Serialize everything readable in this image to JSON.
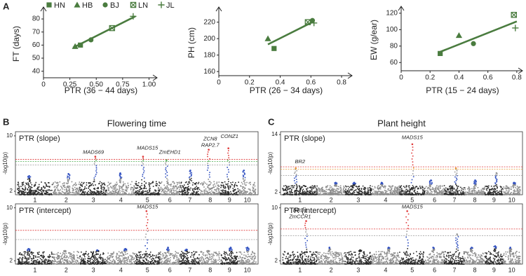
{
  "panel_labels": [
    "A",
    "B",
    "C"
  ],
  "chart_data": [
    {
      "type": "scatter",
      "x_label": "PTR (36 − 44 days)",
      "y_label": "FT (days)",
      "xlim": [
        0,
        1.05
      ],
      "ylim": [
        35,
        87
      ],
      "xticks": [
        0,
        {
          "value": 0.25,
          "label": "0.25"
        },
        {
          "value": 0.5,
          "label": "0.50"
        },
        {
          "value": 0.75,
          "label": "0.75"
        },
        {
          "value": 1,
          "label": "1.00"
        }
      ],
      "yticks": [
        40,
        50,
        60,
        70,
        80
      ],
      "legend": true,
      "color": "#4a7c3f",
      "series": [
        {
          "name": "HN",
          "marker": "square",
          "x": [
            0.35
          ],
          "values": [
            60
          ]
        },
        {
          "name": "HB",
          "marker": "triangle",
          "x": [
            0.3
          ],
          "values": [
            59
          ]
        },
        {
          "name": "BJ",
          "marker": "circle",
          "x": [
            0.45
          ],
          "values": [
            64
          ]
        },
        {
          "name": "LN",
          "marker": "boxed-x",
          "x": [
            0.65
          ],
          "values": [
            73
          ]
        },
        {
          "name": "JL",
          "marker": "plus",
          "x": [
            0.85
          ],
          "values": [
            82
          ]
        }
      ],
      "fit_line": {
        "x": [
          0.28,
          0.87
        ],
        "values": [
          58,
          82
        ]
      }
    },
    {
      "type": "scatter",
      "x_label": "PTR (26 − 34 days)",
      "y_label": "PH (cm)",
      "xlim": [
        0,
        0.85
      ],
      "ylim": [
        155,
        235
      ],
      "xticks": [
        0,
        0.2,
        0.4,
        0.6,
        0.8
      ],
      "yticks": [
        160,
        180,
        200,
        220
      ],
      "legend": false,
      "color": "#4a7c3f",
      "series": [
        {
          "name": "HN",
          "marker": "square",
          "x": [
            0.36
          ],
          "values": [
            188
          ]
        },
        {
          "name": "HB",
          "marker": "triangle",
          "x": [
            0.32
          ],
          "values": [
            200
          ]
        },
        {
          "name": "BJ",
          "marker": "circle",
          "x": [
            0.61
          ],
          "values": [
            222
          ]
        },
        {
          "name": "LN",
          "marker": "boxed-x",
          "x": [
            0.58
          ],
          "values": [
            220
          ]
        },
        {
          "name": "JL",
          "marker": "plus",
          "x": [
            0.62
          ],
          "values": [
            219
          ]
        }
      ],
      "fit_line": {
        "x": [
          0.32,
          0.62
        ],
        "values": [
          193,
          221
        ]
      }
    },
    {
      "type": "scatter",
      "x_label": "PTR (15 − 24 days)",
      "y_label": "EW (g/ear)",
      "xlim": [
        0,
        0.82
      ],
      "ylim": [
        50,
        125
      ],
      "xticks": [
        0,
        0.2,
        0.4,
        0.6,
        0.8
      ],
      "yticks": [
        60,
        80,
        100,
        120
      ],
      "legend": false,
      "color": "#4a7c3f",
      "series": [
        {
          "name": "HN",
          "marker": "square",
          "x": [
            0.27
          ],
          "values": [
            71
          ]
        },
        {
          "name": "HB",
          "marker": "triangle",
          "x": [
            0.4
          ],
          "values": [
            93
          ]
        },
        {
          "name": "BJ",
          "marker": "circle",
          "x": [
            0.5
          ],
          "values": [
            83
          ]
        },
        {
          "name": "LN",
          "marker": "boxed-x",
          "x": [
            0.78
          ],
          "values": [
            118
          ]
        },
        {
          "name": "JL",
          "marker": "plus",
          "x": [
            0.79
          ],
          "values": [
            102
          ]
        }
      ],
      "fit_line": {
        "x": [
          0.27,
          0.8
        ],
        "values": [
          73,
          110
        ]
      }
    },
    {
      "type": "manhattan",
      "title": "Flowering time",
      "subtitle": "PTR (slope)",
      "y_label": "-log10(p)",
      "ylim": [
        1.5,
        10.6
      ],
      "yticks": [
        2,
        10
      ],
      "categories": [
        "1",
        "2",
        "3",
        "4",
        "5",
        "6",
        "7",
        "8",
        "9",
        "10"
      ],
      "values": [
        4.2,
        4.5,
        7,
        4.6,
        7,
        6.5,
        5,
        8,
        8.2,
        5
      ],
      "thresholds": [
        {
          "color": "#e03a3a",
          "value": 6.6
        },
        {
          "color": "#4caf50",
          "value": 6.3
        },
        {
          "color": "#9a9a9a",
          "value": 5.8
        }
      ],
      "annotations": [
        {
          "text": "MADS69",
          "x": "3",
          "value": 7
        },
        {
          "text": "MADS15",
          "x": "5",
          "value": 7.6
        },
        {
          "text": "ZmEHD1",
          "x": "6",
          "value": 7
        },
        {
          "text": "RAP2.7",
          "x": "8",
          "value": 8
        },
        {
          "text": "ZCN8",
          "x": "8",
          "value": 8
        },
        {
          "text": "CONZ1",
          "x": "9",
          "value": 9.3
        }
      ]
    },
    {
      "type": "manhattan",
      "subtitle": "PTR (intercept)",
      "y_label": "-log10(p)",
      "ylim": [
        1.5,
        10.6
      ],
      "yticks": [
        2,
        10
      ],
      "categories": [
        "1",
        "2",
        "3",
        "4",
        "5",
        "6",
        "7",
        "8",
        "9",
        "10"
      ],
      "values": [
        3.8,
        3.5,
        3.6,
        3.8,
        9.5,
        4,
        3.7,
        3.5,
        4,
        4
      ],
      "thresholds": [
        {
          "color": "#e03a3a",
          "value": 6.6
        },
        {
          "color": "#9a9a9a",
          "value": 5.2
        }
      ],
      "annotations": [
        {
          "text": "MADS15",
          "x": "5",
          "value": 9.5
        }
      ]
    },
    {
      "type": "manhattan",
      "title": "Plant height",
      "subtitle": "PTR (slope)",
      "y_label": "-log10(p)",
      "ylim": [
        1.5,
        14.6
      ],
      "yticks": [
        2,
        14
      ],
      "categories": [
        "1",
        "2",
        "3",
        "4",
        "5",
        "6",
        "7",
        "8",
        "9",
        "10"
      ],
      "values": [
        7,
        4,
        4,
        4,
        12,
        4.5,
        7,
        4.5,
        6,
        4
      ],
      "thresholds": [
        {
          "color": "#e03a3a",
          "value": 7.3
        },
        {
          "color": "#e69a3a",
          "value": 6.8
        },
        {
          "color": "#9a9a9a",
          "value": 5.5
        }
      ],
      "annotations": [
        {
          "text": "BR2",
          "x": "1",
          "value": 7.5
        },
        {
          "text": "MADS15",
          "x": "5",
          "value": 12.5
        }
      ]
    },
    {
      "type": "manhattan",
      "subtitle": "PTR (intercept)",
      "y_label": "-log10(p)",
      "ylim": [
        1.5,
        10.6
      ],
      "yticks": [
        2,
        10
      ],
      "categories": [
        "1",
        "2",
        "3",
        "4",
        "5",
        "6",
        "7",
        "8",
        "9",
        "10"
      ],
      "values": [
        8,
        4,
        3.6,
        4,
        9.5,
        4,
        6,
        4,
        4.2,
        4
      ],
      "thresholds": [
        {
          "color": "#e03a3a",
          "value": 6.8
        },
        {
          "color": "#9a9a9a",
          "value": 5.8
        }
      ],
      "annotations": [
        {
          "text": "ZmCCR1",
          "x": "1",
          "value": 8
        },
        {
          "text": "BRD1",
          "x": "1",
          "value": 8
        },
        {
          "text": "MADS15",
          "x": "5",
          "value": 9.5
        }
      ]
    }
  ]
}
